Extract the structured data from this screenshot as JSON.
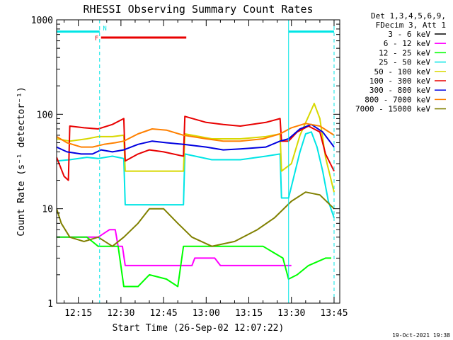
{
  "chart_data": {
    "type": "line",
    "title": "RHESSI Observing Summary Count Rates",
    "xlabel": "Start Time (26-Sep-02 12:07:22)",
    "ylabel": "Count Rate (s⁻¹ detector⁻¹)",
    "y_scale": "log",
    "ylim": [
      1,
      1000
    ],
    "xlim": [
      "12:07:22",
      "13:47:00"
    ],
    "x_ticks": [
      "12:15",
      "12:30",
      "12:45",
      "13:00",
      "13:15",
      "13:30",
      "13:45"
    ],
    "y_ticks": [
      "1",
      "10",
      "100",
      "1000"
    ],
    "legend_header": [
      "Det 1,3,4,5,6,9,",
      "FDecim 3, Att 1"
    ],
    "legend_position": "right-outside",
    "timestamp": "19-Oct-2021 19:38",
    "series": [
      {
        "name": "3 - 6 keV",
        "color": "#000000",
        "points": []
      },
      {
        "name": "6 - 12 keV",
        "color": "#ff00ff",
        "points": [
          [
            "12:07:22",
            5
          ],
          [
            "12:22:00",
            5
          ],
          [
            "12:26:00",
            6
          ],
          [
            "12:28:00",
            6
          ],
          [
            "12:29:00",
            4
          ],
          [
            "12:30:30",
            4
          ],
          [
            "12:31:30",
            2.5
          ],
          [
            "12:40:00",
            2.5
          ],
          [
            "12:45:00",
            2.5
          ],
          [
            "12:55:00",
            2.5
          ],
          [
            "12:56:00",
            3
          ],
          [
            "13:03:00",
            3
          ],
          [
            "13:05:00",
            2.5
          ],
          [
            "13:28:00",
            2.5
          ],
          [
            "13:30:00",
            2.5
          ]
        ]
      },
      {
        "name": "12 - 25 keV",
        "color": "#00ff00",
        "points": [
          [
            "12:07:22",
            5
          ],
          [
            "12:18:00",
            5
          ],
          [
            "12:22:00",
            4
          ],
          [
            "12:29:00",
            4
          ],
          [
            "12:31:00",
            1.5
          ],
          [
            "12:36:00",
            1.5
          ],
          [
            "12:40:00",
            2
          ],
          [
            "12:46:00",
            1.8
          ],
          [
            "12:50:00",
            1.5
          ],
          [
            "12:52:00",
            4
          ],
          [
            "13:05:00",
            4
          ],
          [
            "13:20:00",
            4
          ],
          [
            "13:27:00",
            3
          ],
          [
            "13:29:00",
            1.8
          ],
          [
            "13:32:00",
            2
          ],
          [
            "13:36:00",
            2.5
          ],
          [
            "13:42:00",
            3
          ],
          [
            "13:44:00",
            3
          ]
        ]
      },
      {
        "name": "25 - 50 keV",
        "color": "#00e5e5",
        "points": [
          [
            "12:07:22",
            32
          ],
          [
            "12:12:00",
            33
          ],
          [
            "12:18:00",
            35
          ],
          [
            "12:22:00",
            34
          ],
          [
            "12:27:00",
            36
          ],
          [
            "12:31:00",
            34
          ],
          [
            "12:31:30",
            11
          ],
          [
            "12:52:00",
            11
          ],
          [
            "12:52:30",
            38
          ],
          [
            "13:02:00",
            33
          ],
          [
            "13:12:00",
            33
          ],
          [
            "13:21:00",
            36
          ],
          [
            "13:26:00",
            38
          ],
          [
            "13:26:30",
            13
          ],
          [
            "13:29:00",
            13
          ],
          [
            "13:33:00",
            40
          ],
          [
            "13:35:00",
            62
          ],
          [
            "13:37:00",
            65
          ],
          [
            "13:39:00",
            45
          ],
          [
            "13:41:00",
            25
          ],
          [
            "13:43:00",
            12
          ],
          [
            "13:45:00",
            8
          ]
        ]
      },
      {
        "name": "50 - 100 keV",
        "color": "#d8d800",
        "points": [
          [
            "12:07:22",
            55
          ],
          [
            "12:12:00",
            52
          ],
          [
            "12:18:00",
            55
          ],
          [
            "12:22:00",
            58
          ],
          [
            "12:27:00",
            58
          ],
          [
            "12:31:00",
            60
          ],
          [
            "12:31:30",
            25
          ],
          [
            "12:52:00",
            25
          ],
          [
            "12:52:30",
            62
          ],
          [
            "13:02:00",
            55
          ],
          [
            "13:12:00",
            55
          ],
          [
            "13:21:00",
            58
          ],
          [
            "13:26:00",
            62
          ],
          [
            "13:26:30",
            25
          ],
          [
            "13:30:00",
            30
          ],
          [
            "13:33:00",
            60
          ],
          [
            "13:36:00",
            95
          ],
          [
            "13:38:00",
            130
          ],
          [
            "13:40:00",
            90
          ],
          [
            "13:42:00",
            35
          ],
          [
            "13:45:00",
            15
          ]
        ]
      },
      {
        "name": "100 - 300 keV",
        "color": "#e80000",
        "points": [
          [
            "12:07:22",
            35
          ],
          [
            "12:10:00",
            22
          ],
          [
            "12:11:30",
            20
          ],
          [
            "12:12:00",
            75
          ],
          [
            "12:17:00",
            72
          ],
          [
            "12:22:00",
            70
          ],
          [
            "12:27:00",
            78
          ],
          [
            "12:31:00",
            90
          ],
          [
            "12:31:30",
            32
          ],
          [
            "12:36:00",
            38
          ],
          [
            "12:40:00",
            42
          ],
          [
            "12:45:00",
            40
          ],
          [
            "12:52:00",
            36
          ],
          [
            "12:52:30",
            95
          ],
          [
            "13:00:00",
            82
          ],
          [
            "13:06:00",
            78
          ],
          [
            "13:12:00",
            75
          ],
          [
            "13:21:00",
            82
          ],
          [
            "13:26:00",
            90
          ],
          [
            "13:26:30",
            52
          ],
          [
            "13:29:00",
            52
          ],
          [
            "13:32:00",
            65
          ],
          [
            "13:36:00",
            75
          ],
          [
            "13:40:00",
            65
          ],
          [
            "13:42:00",
            38
          ],
          [
            "13:45:00",
            25
          ]
        ]
      },
      {
        "name": "300 - 800 keV",
        "color": "#0000e0",
        "points": [
          [
            "12:07:22",
            45
          ],
          [
            "12:11:00",
            40
          ],
          [
            "12:16:00",
            38
          ],
          [
            "12:20:00",
            38
          ],
          [
            "12:23:00",
            42
          ],
          [
            "12:27:00",
            40
          ],
          [
            "12:31:00",
            42
          ],
          [
            "12:36:00",
            48
          ],
          [
            "12:41:00",
            52
          ],
          [
            "12:46:00",
            50
          ],
          [
            "12:52:00",
            48
          ],
          [
            "13:00:00",
            45
          ],
          [
            "13:06:00",
            42
          ],
          [
            "13:12:00",
            43
          ],
          [
            "13:21:00",
            45
          ],
          [
            "13:26:00",
            52
          ],
          [
            "13:29:00",
            55
          ],
          [
            "13:33:00",
            70
          ],
          [
            "13:37:00",
            78
          ],
          [
            "13:41:00",
            65
          ],
          [
            "13:45:00",
            45
          ]
        ]
      },
      {
        "name": "800 - 7000 keV",
        "color": "#ff8000",
        "points": [
          [
            "12:07:22",
            58
          ],
          [
            "12:11:00",
            50
          ],
          [
            "12:16:00",
            45
          ],
          [
            "12:20:00",
            45
          ],
          [
            "12:24:00",
            48
          ],
          [
            "12:28:00",
            50
          ],
          [
            "12:31:00",
            52
          ],
          [
            "12:36:00",
            62
          ],
          [
            "12:41:00",
            70
          ],
          [
            "12:46:00",
            68
          ],
          [
            "12:52:00",
            60
          ],
          [
            "13:00:00",
            55
          ],
          [
            "13:06:00",
            52
          ],
          [
            "13:12:00",
            52
          ],
          [
            "13:20:00",
            55
          ],
          [
            "13:26:00",
            62
          ],
          [
            "13:30:00",
            72
          ],
          [
            "13:35:00",
            80
          ],
          [
            "13:40:00",
            75
          ],
          [
            "13:45:00",
            60
          ]
        ]
      },
      {
        "name": "7000 - 15000 keV",
        "color": "#808000",
        "points": [
          [
            "12:07:22",
            10
          ],
          [
            "12:09:00",
            7
          ],
          [
            "12:12:00",
            5
          ],
          [
            "12:17:00",
            4.5
          ],
          [
            "12:22:00",
            5
          ],
          [
            "12:27:00",
            4
          ],
          [
            "12:31:00",
            5
          ],
          [
            "12:36:00",
            7
          ],
          [
            "12:40:00",
            10
          ],
          [
            "12:45:00",
            10
          ],
          [
            "12:50:00",
            7
          ],
          [
            "12:55:00",
            5
          ],
          [
            "13:02:00",
            4
          ],
          [
            "13:10:00",
            4.5
          ],
          [
            "13:18:00",
            6
          ],
          [
            "13:24:00",
            8
          ],
          [
            "13:30:00",
            12
          ],
          [
            "13:35:00",
            15
          ],
          [
            "13:40:00",
            14
          ],
          [
            "13:45:00",
            10
          ]
        ]
      }
    ],
    "annotations": [
      {
        "type": "attenuator",
        "label": "",
        "color": "#00e5e5",
        "start": "12:07:22",
        "end": "12:22:30",
        "level": 750
      },
      {
        "type": "attenuator",
        "label": "",
        "color": "#00e5e5",
        "start": "13:29:00",
        "end": "13:45:00",
        "level": 750
      },
      {
        "type": "flare",
        "label": "F",
        "color": "#e80000",
        "start": "12:23:00",
        "end": "12:53:00",
        "level": 650
      },
      {
        "type": "night",
        "label": "N",
        "color": "#00e5e5",
        "time": "12:22:40"
      }
    ],
    "vlines": [
      {
        "time": "12:07:22",
        "style": "solid",
        "color": "#00e5e5"
      },
      {
        "time": "12:22:30",
        "style": "dashed",
        "color": "#00e5e5"
      },
      {
        "time": "13:29:00",
        "style": "solid",
        "color": "#00e5e5"
      },
      {
        "time": "13:45:00",
        "style": "dashed",
        "color": "#00e5e5"
      }
    ]
  }
}
